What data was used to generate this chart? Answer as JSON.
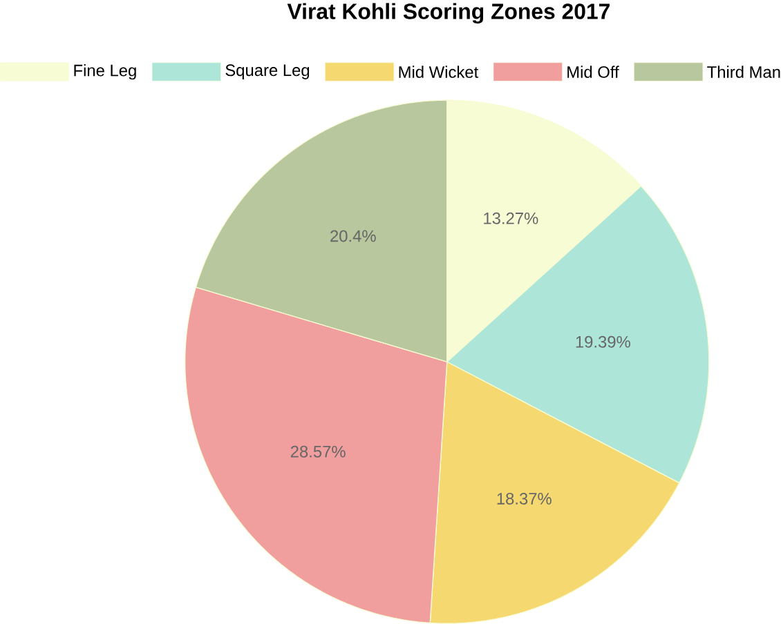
{
  "chart_data": {
    "type": "pie",
    "title": "Virat Kohli Scoring Zones 2017",
    "categories": [
      "Fine Leg",
      "Square Leg",
      "Mid Wicket",
      "Mid Off",
      "Third Man"
    ],
    "values": [
      13.27,
      19.39,
      18.37,
      28.57,
      20.4
    ],
    "value_labels": [
      "13.27%",
      "19.39%",
      "18.37%",
      "28.57%",
      "20.4%"
    ],
    "colors": [
      "#f7fcd4",
      "#ade6d8",
      "#f5d970",
      "#f09e9e",
      "#b9c79e"
    ],
    "legend": "top"
  }
}
